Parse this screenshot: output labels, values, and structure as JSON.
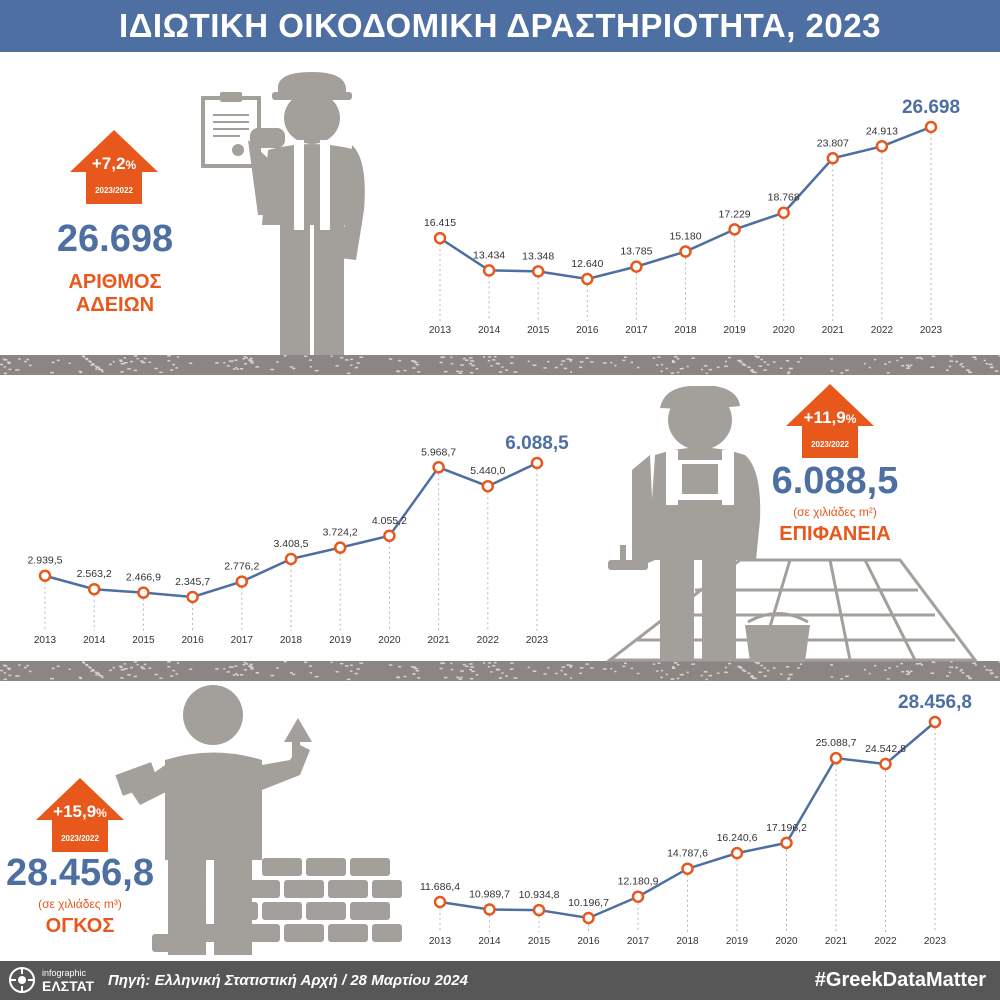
{
  "title": "ΙΔΙΩΤΙΚΗ ΟΙΚΟΔΟΜΙΚΗ ΔΡΑΣΤΗΡΙΟΤΗΤΑ, 2023",
  "colors": {
    "primary_blue": "#4e6fa1",
    "accent_orange": "#e8581c",
    "figure_gray": "#a39f9b",
    "band_gray": "#8b8684",
    "footer_bg": "#575757"
  },
  "sections": [
    {
      "big_value": "26.698",
      "unit": "",
      "label_line1": "ΑΡΙΘΜΟΣ",
      "label_line2": "ΑΔΕΙΩΝ",
      "change": "+7,2",
      "change_pct_sign": "%",
      "change_period": "2023/2022",
      "illustration_icon": "worker-with-permit-icon"
    },
    {
      "big_value": "6.088,5",
      "unit": "(σε χιλιάδες m²)",
      "label_line1": "ΕΠΙΦΑΝΕΙΑ",
      "label_line2": "",
      "change": "+11,9",
      "change_pct_sign": "%",
      "change_period": "2023/2022",
      "illustration_icon": "worker-with-tiles-icon"
    },
    {
      "big_value": "28.456,8",
      "unit": "(σε χιλιάδες m³)",
      "label_line1": "ΟΓΚΟΣ",
      "label_line2": "",
      "change": "+15,9",
      "change_pct_sign": "%",
      "change_period": "2023/2022",
      "illustration_icon": "builder-with-trowel-icon"
    }
  ],
  "chart_data": [
    {
      "type": "line",
      "title": "",
      "xlabel": "",
      "ylabel": "",
      "grid": false,
      "x": [
        "2013",
        "2014",
        "2015",
        "2016",
        "2017",
        "2018",
        "2019",
        "2020",
        "2021",
        "2022",
        "2023"
      ],
      "values": [
        16415,
        13434,
        13348,
        12640,
        13785,
        15180,
        17229,
        18768,
        23807,
        24913,
        26698
      ],
      "labels": [
        "16.415",
        "13.434",
        "13.348",
        "12.640",
        "13.785",
        "15.180",
        "17.229",
        "18.768",
        "23.807",
        "24.913",
        "26.698"
      ]
    },
    {
      "type": "line",
      "title": "",
      "xlabel": "",
      "ylabel": "",
      "grid": false,
      "x": [
        "2013",
        "2014",
        "2015",
        "2016",
        "2017",
        "2018",
        "2019",
        "2020",
        "2021",
        "2022",
        "2023"
      ],
      "values": [
        2939.5,
        2563.2,
        2466.9,
        2345.7,
        2776.2,
        3408.5,
        3724.2,
        4055.2,
        5968.7,
        5440.0,
        6088.5
      ],
      "labels": [
        "2.939,5",
        "2.563,2",
        "2.466,9",
        "2.345,7",
        "2.776,2",
        "3.408,5",
        "3.724,2",
        "4.055,2",
        "5.968,7",
        "5.440,0",
        "6.088,5"
      ]
    },
    {
      "type": "line",
      "title": "",
      "xlabel": "",
      "ylabel": "",
      "grid": false,
      "x": [
        "2013",
        "2014",
        "2015",
        "2016",
        "2017",
        "2018",
        "2019",
        "2020",
        "2021",
        "2022",
        "2023"
      ],
      "values": [
        11686.4,
        10989.7,
        10934.8,
        10196.7,
        12180.9,
        14787.6,
        16240.6,
        17196.2,
        25088.7,
        24542.8,
        28456.8
      ],
      "labels": [
        "11.686,4",
        "10.989,7",
        "10.934,8",
        "10.196,7",
        "12.180,9",
        "14.787,6",
        "16.240,6",
        "17.196,2",
        "25.088,7",
        "24.542,8",
        "28.456,8"
      ]
    }
  ],
  "footer": {
    "brand_small": "infographic",
    "brand_big": "ΕΛΣΤΑΤ",
    "source": "Πηγή: Ελληνική Στατιστική Αρχή  / 28 Μαρτίου 2024",
    "hashtag": "#GreekDataMatter"
  }
}
